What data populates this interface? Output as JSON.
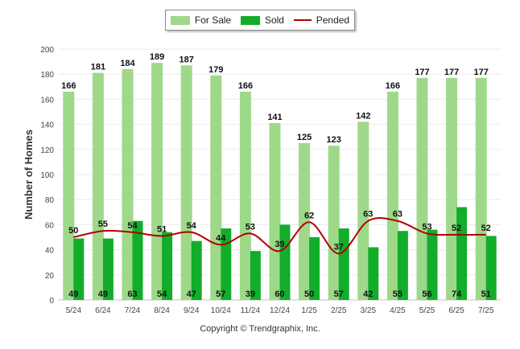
{
  "chart_data": {
    "type": "bar",
    "ylabel": "Number of Homes",
    "xlabel": "",
    "ylim": [
      0,
      200
    ],
    "yticks": [
      0,
      20,
      40,
      60,
      80,
      100,
      120,
      140,
      160,
      180,
      200
    ],
    "categories": [
      "5/24",
      "6/24",
      "7/24",
      "8/24",
      "9/24",
      "10/24",
      "11/24",
      "12/24",
      "1/25",
      "2/25",
      "3/25",
      "4/25",
      "5/25",
      "6/25",
      "7/25"
    ],
    "series": [
      {
        "name": "For Sale",
        "type": "bar",
        "color": "#9ed98a",
        "values": [
          166,
          181,
          184,
          189,
          187,
          179,
          166,
          141,
          125,
          123,
          142,
          166,
          177,
          177,
          177
        ]
      },
      {
        "name": "Sold",
        "type": "bar",
        "color": "#12ad2b",
        "values": [
          49,
          49,
          63,
          54,
          47,
          57,
          39,
          60,
          50,
          57,
          42,
          55,
          56,
          74,
          51
        ]
      },
      {
        "name": "Pended",
        "type": "line",
        "color": "#b00000",
        "values": [
          50,
          55,
          54,
          51,
          54,
          44,
          53,
          39,
          62,
          37,
          63,
          63,
          53,
          52,
          52
        ]
      }
    ],
    "grid": true,
    "legend_position": "top-center"
  },
  "footer": {
    "copyright": "Copyright © Trendgraphix, Inc."
  }
}
